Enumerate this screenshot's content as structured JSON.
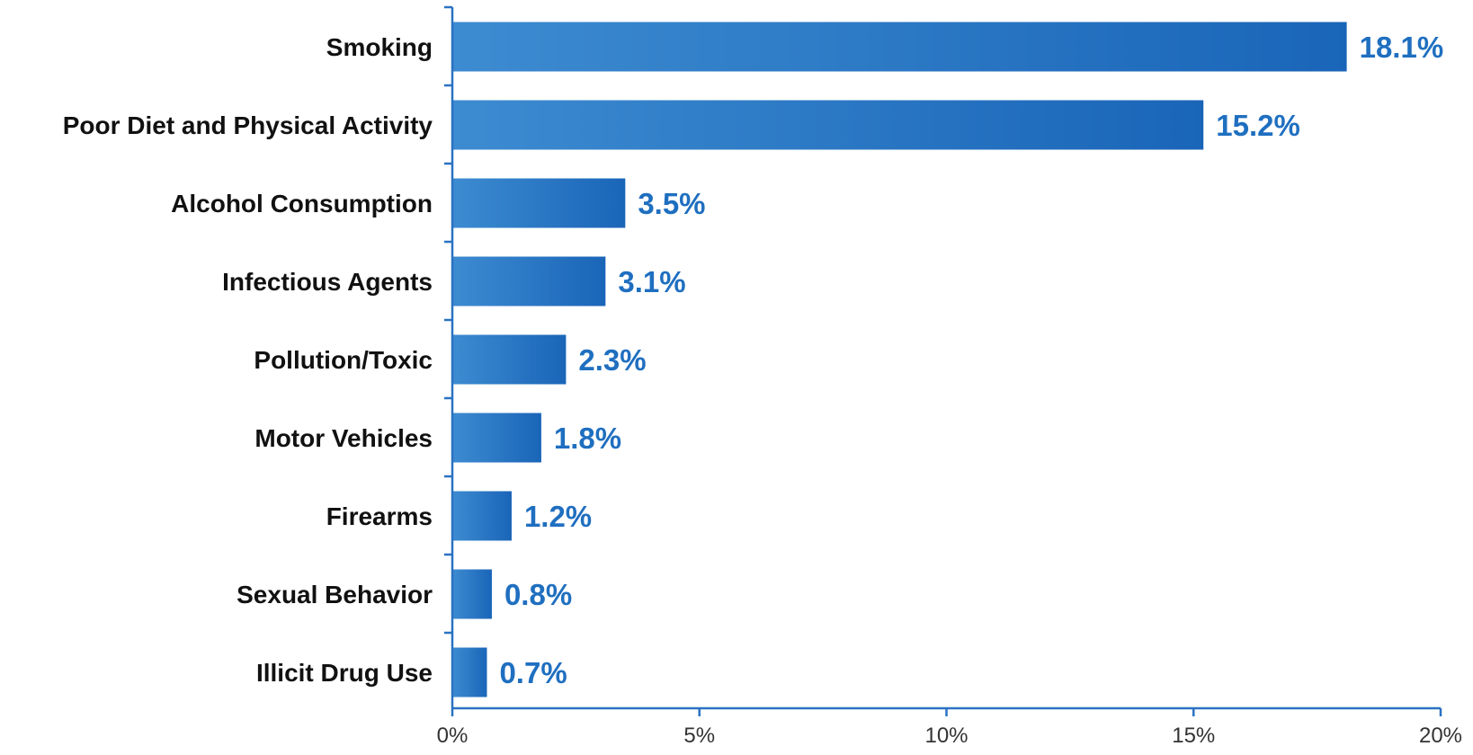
{
  "chart_data": {
    "type": "bar",
    "orientation": "horizontal",
    "categories": [
      "Smoking",
      "Poor Diet and Physical Activity",
      "Alcohol Consumption",
      "Infectious Agents",
      "Pollution/Toxic",
      "Motor Vehicles",
      "Firearms",
      "Sexual Behavior",
      "Illicit Drug Use"
    ],
    "values": [
      18.1,
      15.2,
      3.5,
      3.1,
      2.3,
      1.8,
      1.2,
      0.8,
      0.7
    ],
    "data_labels": [
      "18.1%",
      "15.2%",
      "3.5%",
      "3.1%",
      "2.3%",
      "1.8%",
      "1.2%",
      "0.8%",
      "0.7%"
    ],
    "xlim": [
      0,
      20
    ],
    "xticks": [
      0,
      5,
      10,
      15,
      20
    ],
    "xtick_labels": [
      "0%",
      "5%",
      "10%",
      "15%",
      "20%"
    ],
    "title": "",
    "xlabel": "",
    "ylabel": "",
    "grid": false,
    "legend": "none",
    "colors": {
      "bar_light": "#3d8bd1",
      "bar_dark": "#1a65b8",
      "axis": "#2a72c2",
      "value_label": "#1f6fc0",
      "category_label": "#111111",
      "tick_label": "#333333"
    }
  }
}
